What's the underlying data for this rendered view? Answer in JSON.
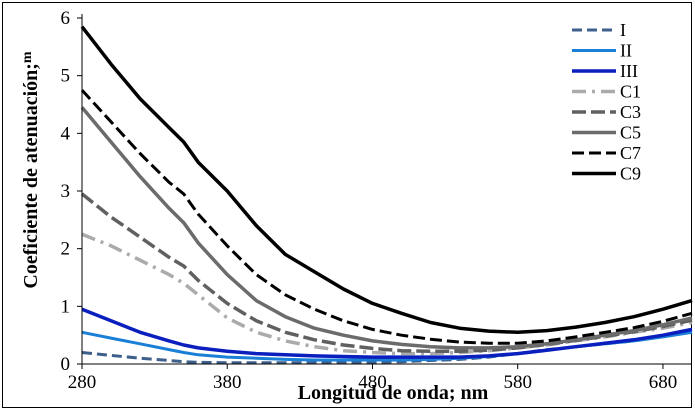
{
  "chart_data": {
    "type": "line",
    "xlabel": "Longitud de onda; nm",
    "ylabel": "Coeficiente de atenuación;",
    "ylabel_unit_tail": "m",
    "xlim": [
      280,
      700
    ],
    "ylim": [
      0,
      6
    ],
    "xticks": [
      280,
      380,
      480,
      580,
      680
    ],
    "yticks": [
      0,
      1,
      2,
      3,
      4,
      5,
      6
    ],
    "x": [
      280,
      300,
      320,
      340,
      350,
      360,
      380,
      400,
      420,
      440,
      460,
      480,
      500,
      520,
      540,
      560,
      580,
      600,
      620,
      640,
      660,
      680,
      700
    ],
    "legend_position": "top-right",
    "grid": false,
    "series": [
      {
        "name": "I",
        "color": "#3d5f8c",
        "dash": "10,5",
        "width": 3,
        "values": [
          0.2,
          0.15,
          0.1,
          0.06,
          0.04,
          0.03,
          0.02,
          0.02,
          0.02,
          0.02,
          0.02,
          0.03,
          0.04,
          0.06,
          0.08,
          0.12,
          0.18,
          0.25,
          0.3,
          0.35,
          0.4,
          0.48,
          0.58
        ]
      },
      {
        "name": "II",
        "color": "#1a7fd6",
        "dash": "",
        "width": 3,
        "values": [
          0.55,
          0.45,
          0.35,
          0.25,
          0.2,
          0.16,
          0.12,
          0.1,
          0.08,
          0.07,
          0.07,
          0.07,
          0.07,
          0.08,
          0.1,
          0.13,
          0.18,
          0.24,
          0.3,
          0.35,
          0.4,
          0.47,
          0.55
        ]
      },
      {
        "name": "III",
        "color": "#0b1fbf",
        "dash": "",
        "width": 3.5,
        "values": [
          0.95,
          0.75,
          0.55,
          0.4,
          0.33,
          0.28,
          0.22,
          0.18,
          0.16,
          0.14,
          0.13,
          0.12,
          0.12,
          0.12,
          0.12,
          0.14,
          0.18,
          0.24,
          0.3,
          0.36,
          0.42,
          0.5,
          0.6
        ]
      },
      {
        "name": "C1",
        "color": "#ababab",
        "dash": "14,6,3,6",
        "width": 3.5,
        "values": [
          2.25,
          2.05,
          1.8,
          1.55,
          1.4,
          1.2,
          0.8,
          0.55,
          0.4,
          0.3,
          0.23,
          0.2,
          0.18,
          0.18,
          0.2,
          0.23,
          0.28,
          0.33,
          0.4,
          0.47,
          0.55,
          0.62,
          0.72
        ]
      },
      {
        "name": "C3",
        "color": "#606060",
        "dash": "14,5",
        "width": 3.5,
        "values": [
          2.95,
          2.55,
          2.2,
          1.85,
          1.7,
          1.45,
          1.05,
          0.75,
          0.55,
          0.42,
          0.33,
          0.27,
          0.23,
          0.22,
          0.22,
          0.24,
          0.28,
          0.34,
          0.41,
          0.48,
          0.56,
          0.65,
          0.76
        ]
      },
      {
        "name": "C5",
        "color": "#6b6b6b",
        "dash": "",
        "width": 3.5,
        "values": [
          4.45,
          3.85,
          3.25,
          2.7,
          2.45,
          2.1,
          1.55,
          1.1,
          0.82,
          0.62,
          0.5,
          0.4,
          0.34,
          0.3,
          0.28,
          0.28,
          0.3,
          0.35,
          0.42,
          0.5,
          0.58,
          0.68,
          0.8
        ]
      },
      {
        "name": "C7",
        "color": "#000000",
        "dash": "12,5",
        "width": 3,
        "values": [
          4.75,
          4.2,
          3.65,
          3.15,
          2.95,
          2.6,
          2.05,
          1.55,
          1.2,
          0.95,
          0.75,
          0.6,
          0.5,
          0.43,
          0.38,
          0.36,
          0.36,
          0.4,
          0.47,
          0.55,
          0.63,
          0.74,
          0.88
        ]
      },
      {
        "name": "C9",
        "color": "#000000",
        "dash": "",
        "width": 3.5,
        "values": [
          5.85,
          5.2,
          4.6,
          4.1,
          3.85,
          3.5,
          3.0,
          2.4,
          1.9,
          1.6,
          1.3,
          1.05,
          0.88,
          0.72,
          0.62,
          0.57,
          0.55,
          0.58,
          0.64,
          0.72,
          0.82,
          0.95,
          1.1
        ]
      }
    ]
  }
}
